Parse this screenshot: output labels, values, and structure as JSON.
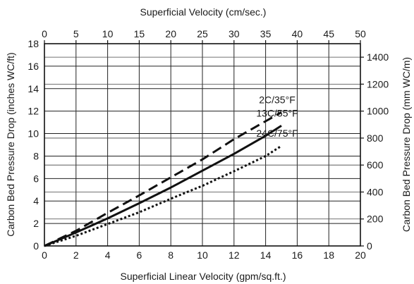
{
  "chart_data": {
    "type": "line",
    "xlabel": "Superficial Linear Velocity (gpm/sq.ft.)",
    "x2label": "Superficial Velocity (cm/sec.)",
    "ylabel": "Carbon Bed Pressure Drop (inches WC/ft)",
    "y2label": "Carbon Bed Pressure Drop (mm WC/m)",
    "xlim": [
      0,
      20
    ],
    "ylim": [
      0,
      18
    ],
    "x2lim": [
      0,
      50
    ],
    "y2lim": [
      0,
      1500
    ],
    "x_ticks": [
      "0",
      "2",
      "4",
      "6",
      "8",
      "10",
      "12",
      "14",
      "16",
      "18",
      "20"
    ],
    "y_ticks": [
      "0",
      "2",
      "4",
      "6",
      "8",
      "10",
      "12",
      "14",
      "16",
      "18"
    ],
    "x2_ticks": [
      "0",
      "5",
      "10",
      "15",
      "20",
      "25",
      "30",
      "35",
      "40",
      "45",
      "50"
    ],
    "y2_ticks": [
      "0",
      "200",
      "400",
      "600",
      "800",
      "1000",
      "1200",
      "1400"
    ],
    "grid": true,
    "series": [
      {
        "name": "2C/35°F",
        "dash": "long-dash",
        "x": [
          0,
          2,
          4,
          6,
          8,
          10,
          12,
          14,
          15
        ],
        "y": [
          0,
          1.35,
          2.95,
          4.5,
          6.1,
          7.7,
          9.5,
          11.1,
          11.9
        ]
      },
      {
        "name": "13C/55°F",
        "dash": "solid",
        "x": [
          0,
          2,
          4,
          6,
          8,
          10,
          12,
          14,
          15
        ],
        "y": [
          0,
          1.2,
          2.45,
          3.8,
          5.2,
          6.7,
          8.2,
          9.8,
          10.7
        ]
      },
      {
        "name": "24C/75°F",
        "dash": "dotted",
        "x": [
          0,
          2,
          4,
          6,
          8,
          10,
          12,
          14,
          15
        ],
        "y": [
          0,
          0.9,
          1.95,
          3.0,
          4.2,
          5.35,
          6.65,
          8.0,
          8.9
        ]
      }
    ]
  }
}
